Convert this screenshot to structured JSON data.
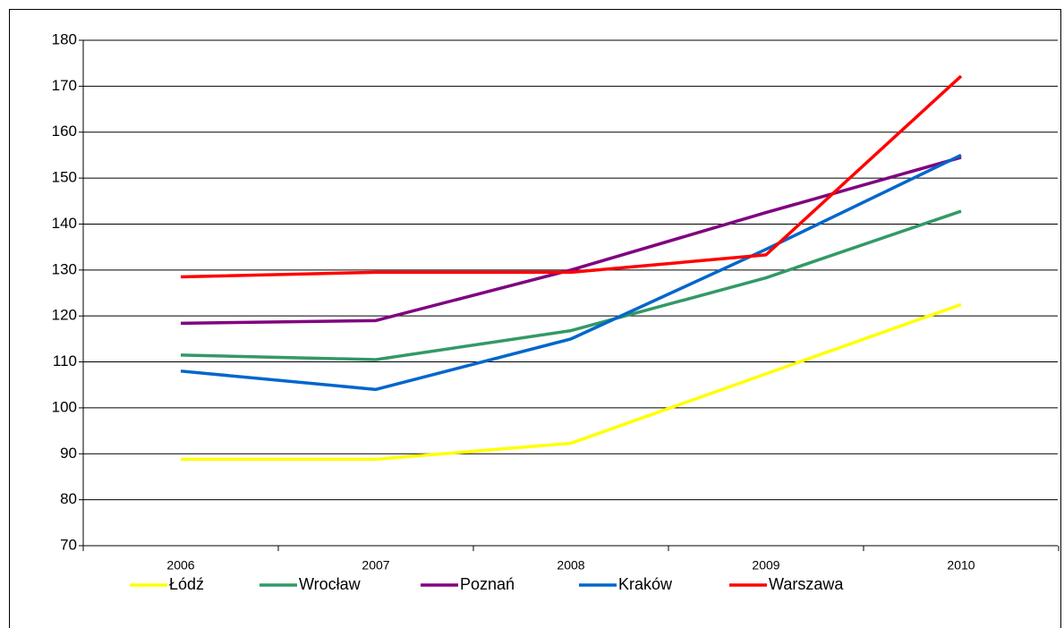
{
  "chart_data": {
    "type": "line",
    "categories": [
      "2006",
      "2007",
      "2008",
      "2009",
      "2010"
    ],
    "series": [
      {
        "name": "Łódź",
        "color": "#ffff00",
        "values": [
          88.8,
          88.8,
          92.3,
          107.4,
          122.5
        ]
      },
      {
        "name": "Wrocław",
        "color": "#339966",
        "values": [
          111.5,
          110.5,
          116.8,
          128.3,
          142.8
        ]
      },
      {
        "name": "Poznań",
        "color": "#800080",
        "values": [
          118.4,
          119,
          130,
          142.5,
          154.5
        ]
      },
      {
        "name": "Kraków",
        "color": "#0066cc",
        "values": [
          108,
          104,
          115,
          134.5,
          155
        ]
      },
      {
        "name": "Warszawa",
        "color": "#ff0000",
        "values": [
          128.5,
          129.5,
          129.5,
          133.3,
          172.2
        ]
      }
    ],
    "ylim": [
      70,
      180
    ],
    "yticks": [
      70,
      80,
      90,
      100,
      110,
      120,
      130,
      140,
      150,
      160,
      170,
      180
    ],
    "grid": true,
    "legend": "bottom"
  }
}
